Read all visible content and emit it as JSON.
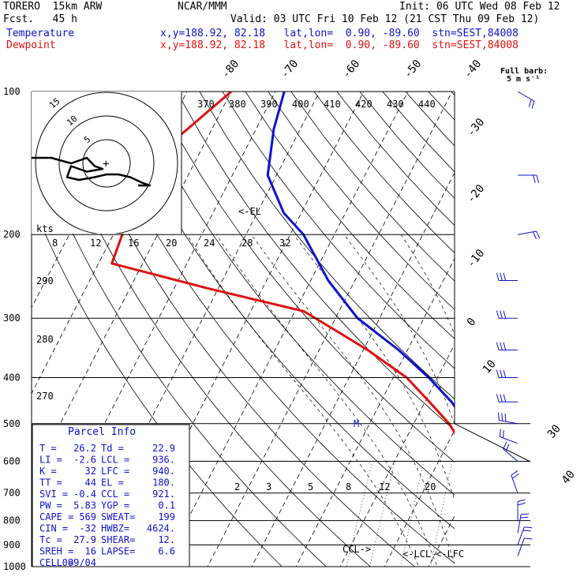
{
  "header": {
    "model": "TORERO  15km ARW",
    "org": "NCAR/MMM",
    "init": "Init: 06 UTC Wed 08 Feb 12",
    "fcst": "Fcst.   45 h",
    "valid": "Valid: 03 UTC Fri 10 Feb 12 (21 CST Thu 09 Feb 12)",
    "temperature_label": "Temperature",
    "dewpoint_label": "Dewpoint",
    "location": "x,y=188.92, 82.18   lat,lon=  0.90, -89.60  stn=SEST,84008",
    "full_barb": "Full barb:",
    "full_barb_units": "5 m s⁻¹"
  },
  "colors": {
    "temperature": "#1010d0",
    "dewpoint": "#e01010"
  },
  "chart_data": {
    "type": "line",
    "title": "",
    "yaxis": {
      "label": "",
      "scale": "log",
      "ticks": [
        100,
        200,
        300,
        400,
        500,
        600,
        700,
        800,
        900,
        1000
      ]
    },
    "isotherm_labels": [
      "-80",
      "-70",
      "-60",
      "-50",
      "-40",
      "-30",
      "-20",
      "-10",
      "0",
      "10",
      "30",
      "40"
    ],
    "theta_labels": [
      "370",
      "380",
      "390",
      "400",
      "410",
      "420",
      "430",
      "440"
    ],
    "theta_labels_left": [
      "290",
      "280",
      "270"
    ],
    "mixing_ratio_labels": [
      "2",
      "3",
      "5",
      "8",
      "12",
      "20"
    ],
    "annotations": [
      "<-EL",
      "M",
      "CCL->",
      "<-LCL",
      "<-LFC"
    ],
    "series": [
      {
        "name": "Temperature",
        "points": [
          {
            "p": 100,
            "t": -78
          },
          {
            "p": 120,
            "t": -76
          },
          {
            "p": 150,
            "t": -72
          },
          {
            "p": 180,
            "t": -64
          },
          {
            "p": 200,
            "t": -57
          },
          {
            "p": 250,
            "t": -46
          },
          {
            "p": 300,
            "t": -35
          },
          {
            "p": 350,
            "t": -22
          },
          {
            "p": 400,
            "t": -12
          },
          {
            "p": 450,
            "t": -4
          },
          {
            "p": 500,
            "t": 2
          },
          {
            "p": 550,
            "t": 6
          },
          {
            "p": 600,
            "t": 9
          },
          {
            "p": 650,
            "t": 13
          },
          {
            "p": 700,
            "t": 17
          },
          {
            "p": 750,
            "t": 19
          },
          {
            "p": 800,
            "t": 19.5
          },
          {
            "p": 850,
            "t": 20
          },
          {
            "p": 900,
            "t": 21.5
          },
          {
            "p": 950,
            "t": 24
          },
          {
            "p": 1000,
            "t": 26.2
          }
        ]
      },
      {
        "name": "Dewpoint",
        "points": [
          {
            "p": 100,
            "t": -90
          },
          {
            "p": 130,
            "t": -98
          },
          {
            "p": 160,
            "t": -102
          },
          {
            "p": 200,
            "t": -98
          },
          {
            "p": 230,
            "t": -97
          },
          {
            "p": 260,
            "t": -72
          },
          {
            "p": 290,
            "t": -48
          },
          {
            "p": 320,
            "t": -38
          },
          {
            "p": 350,
            "t": -29
          },
          {
            "p": 400,
            "t": -17
          },
          {
            "p": 450,
            "t": -9
          },
          {
            "p": 500,
            "t": -2
          },
          {
            "p": 550,
            "t": 3
          },
          {
            "p": 600,
            "t": 5
          },
          {
            "p": 650,
            "t": 7
          },
          {
            "p": 700,
            "t": 8
          },
          {
            "p": 750,
            "t": 12
          },
          {
            "p": 800,
            "t": 16
          },
          {
            "p": 850,
            "t": 18
          },
          {
            "p": 900,
            "t": 20
          },
          {
            "p": 950,
            "t": 22
          },
          {
            "p": 1000,
            "t": 22.9
          }
        ]
      }
    ],
    "hodograph": {
      "rings": [
        "5",
        "10",
        "15"
      ],
      "speed_ticks": [
        "8",
        "12",
        "16",
        "20",
        "24",
        "28",
        "32"
      ],
      "units": "kts",
      "trace": [
        [
          -19,
          -2
        ],
        [
          -14,
          -2
        ],
        [
          -9,
          0
        ],
        [
          -5,
          -2
        ],
        [
          -3,
          1
        ],
        [
          -1,
          2
        ],
        [
          -5,
          3
        ],
        [
          -9,
          1
        ],
        [
          -10,
          5
        ],
        [
          -7,
          6
        ],
        [
          -3,
          5
        ],
        [
          0,
          4
        ],
        [
          3,
          4
        ],
        [
          6,
          5
        ],
        [
          9,
          7
        ],
        [
          11,
          8
        ],
        [
          8,
          8
        ]
      ]
    },
    "wind_barbs": [
      {
        "p": 100,
        "dir": 300,
        "spd": 10
      },
      {
        "p": 150,
        "dir": 270,
        "spd": 10
      },
      {
        "p": 200,
        "dir": 260,
        "spd": 10
      },
      {
        "p": 250,
        "dir": 90,
        "spd": 15
      },
      {
        "p": 300,
        "dir": 90,
        "spd": 15
      },
      {
        "p": 350,
        "dir": 90,
        "spd": 15
      },
      {
        "p": 400,
        "dir": 90,
        "spd": 15
      },
      {
        "p": 450,
        "dir": 90,
        "spd": 15
      },
      {
        "p": 500,
        "dir": 100,
        "spd": 15
      },
      {
        "p": 550,
        "dir": 110,
        "spd": 10
      },
      {
        "p": 600,
        "dir": 130,
        "spd": 10
      },
      {
        "p": 700,
        "dir": 160,
        "spd": 10
      },
      {
        "p": 800,
        "dir": 180,
        "spd": 10
      },
      {
        "p": 850,
        "dir": 190,
        "spd": 10
      },
      {
        "p": 900,
        "dir": 200,
        "spd": 10
      },
      {
        "p": 950,
        "dir": 200,
        "spd": 5
      }
    ],
    "parcel_info": {
      "title": "Parcel Info",
      "rows": [
        [
          "T  =",
          "26.2",
          "Td =",
          "22.9"
        ],
        [
          "LI =",
          "-2.6",
          "LCL =",
          "936."
        ],
        [
          "K  =",
          "32",
          "LFC =",
          "940."
        ],
        [
          "TT =",
          "44",
          "EL =",
          "180."
        ],
        [
          "SVI =",
          "-0.4",
          "CCL =",
          "921."
        ],
        [
          "PW =",
          "5.83",
          "YGP =",
          "0.1"
        ],
        [
          "CAPE =",
          "569",
          "SWEAT=",
          "199"
        ],
        [
          "CIN =",
          "-32",
          "HWBZ=",
          "4624."
        ],
        [
          "Tc =",
          "27.9",
          "SHEAR=",
          "12."
        ],
        [
          "SREH =",
          "16",
          "LAPSE=",
          "6.6"
        ],
        [
          "CELL =",
          "089/04",
          "",
          ""
        ]
      ]
    }
  }
}
